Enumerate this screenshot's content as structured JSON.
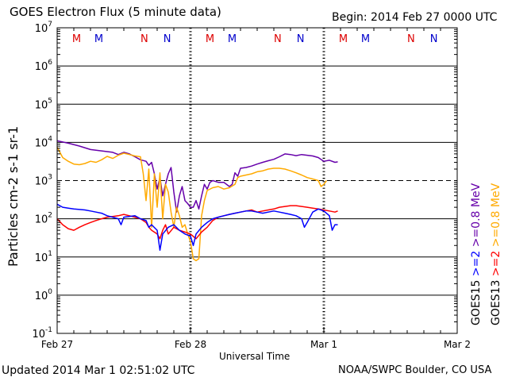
{
  "header": {
    "title": "GOES Electron Flux (5 minute data)",
    "begin": "Begin: 2014 Feb 27 0000 UTC"
  },
  "footer": {
    "updated": "Updated 2014 Mar  1 02:51:02 UTC",
    "credit": "NOAA/SWPC Boulder, CO USA"
  },
  "colors": {
    "goes13_high": "#ff0000",
    "goes15_high": "#0000ff",
    "goes13_low": "#ffaa00",
    "goes15_low": "#6600aa",
    "marker_m": "#dd0000",
    "marker_n_red": "#dd0000",
    "marker_m_blue": "#0000cc",
    "marker_n_blue": "#0000cc"
  },
  "chart_data": {
    "type": "line",
    "title": "GOES Electron Flux (5 minute data)",
    "xlabel": "Universal Time",
    "ylabel": "Particles cm-2 s-1 sr-1",
    "yscale": "log",
    "ylim": [
      0.1,
      10000000
    ],
    "xlim_hours": [
      0,
      72
    ],
    "x_ticks": [
      {
        "hour": 0,
        "label": "Feb 27"
      },
      {
        "hour": 24,
        "label": "Feb 28"
      },
      {
        "hour": 48,
        "label": "Mar 1"
      },
      {
        "hour": 72,
        "label": "Mar 2"
      }
    ],
    "y_ticks": [
      {
        "exp": -1,
        "base": "10",
        "sup": "-1"
      },
      {
        "exp": 0,
        "base": "10",
        "sup": "0"
      },
      {
        "exp": 1,
        "base": "10",
        "sup": "1"
      },
      {
        "exp": 2,
        "base": "10",
        "sup": "2"
      },
      {
        "exp": 3,
        "base": "10",
        "sup": "3"
      },
      {
        "exp": 4,
        "base": "10",
        "sup": "4"
      },
      {
        "exp": 5,
        "base": "10",
        "sup": "5"
      },
      {
        "exp": 6,
        "base": "10",
        "sup": "6"
      },
      {
        "exp": 7,
        "base": "10",
        "sup": "7"
      }
    ],
    "threshold": {
      "value": 1000,
      "style": "dashed"
    },
    "markers": [
      {
        "hour": 3.5,
        "label": "M",
        "color": "#dd0000"
      },
      {
        "hour": 7.5,
        "label": "M",
        "color": "#0000cc"
      },
      {
        "hour": 15.7,
        "label": "N",
        "color": "#dd0000"
      },
      {
        "hour": 19.8,
        "label": "N",
        "color": "#0000cc"
      },
      {
        "hour": 27.5,
        "label": "M",
        "color": "#dd0000"
      },
      {
        "hour": 31.5,
        "label": "M",
        "color": "#0000cc"
      },
      {
        "hour": 39.7,
        "label": "N",
        "color": "#dd0000"
      },
      {
        "hour": 43.8,
        "label": "N",
        "color": "#0000cc"
      },
      {
        "hour": 51.5,
        "label": "M",
        "color": "#dd0000"
      },
      {
        "hour": 55.5,
        "label": "M",
        "color": "#0000cc"
      },
      {
        "hour": 63.7,
        "label": "N",
        "color": "#dd0000"
      },
      {
        "hour": 67.8,
        "label": "N",
        "color": "#0000cc"
      }
    ],
    "series": [
      {
        "name": "GOES15 >=0.8 MeV",
        "color": "#6600aa",
        "points": [
          [
            0,
            11000
          ],
          [
            2,
            9500
          ],
          [
            4,
            8000
          ],
          [
            6,
            6500
          ],
          [
            8,
            6000
          ],
          [
            10,
            5500
          ],
          [
            11,
            4800
          ],
          [
            12,
            5500
          ],
          [
            13,
            5000
          ],
          [
            14,
            4200
          ],
          [
            15,
            3500
          ],
          [
            16,
            3200
          ],
          [
            16.5,
            2500
          ],
          [
            17,
            3000
          ],
          [
            17.5,
            1500
          ],
          [
            18,
            600
          ],
          [
            18.5,
            1200
          ],
          [
            19,
            400
          ],
          [
            19.5,
            800
          ],
          [
            20,
            1500
          ],
          [
            20.5,
            2200
          ],
          [
            21,
            500
          ],
          [
            21.5,
            150
          ],
          [
            22,
            400
          ],
          [
            22.5,
            700
          ],
          [
            23,
            300
          ],
          [
            23.5,
            250
          ],
          [
            24,
            200
          ],
          [
            24.5,
            200
          ],
          [
            25,
            300
          ],
          [
            25.5,
            180
          ],
          [
            26,
            400
          ],
          [
            26.5,
            800
          ],
          [
            27,
            600
          ],
          [
            27.5,
            900
          ],
          [
            28,
            1000
          ],
          [
            29,
            900
          ],
          [
            30,
            900
          ],
          [
            31,
            700
          ],
          [
            31.5,
            800
          ],
          [
            32,
            1600
          ],
          [
            32.5,
            1300
          ],
          [
            33,
            2100
          ],
          [
            34,
            2200
          ],
          [
            35,
            2400
          ],
          [
            36,
            2700
          ],
          [
            37,
            3000
          ],
          [
            38,
            3300
          ],
          [
            39,
            3600
          ],
          [
            40,
            4200
          ],
          [
            41,
            5000
          ],
          [
            42,
            4800
          ],
          [
            43,
            4500
          ],
          [
            44,
            4800
          ],
          [
            45,
            4600
          ],
          [
            46,
            4400
          ],
          [
            47,
            4000
          ],
          [
            48,
            3200
          ],
          [
            49,
            3400
          ],
          [
            50,
            3000
          ],
          [
            50.5,
            3100
          ]
        ]
      },
      {
        "name": "GOES13 >=0.8 MeV",
        "color": "#ffaa00",
        "points": [
          [
            0,
            7500
          ],
          [
            1,
            4000
          ],
          [
            2,
            3200
          ],
          [
            3,
            2700
          ],
          [
            4,
            2600
          ],
          [
            5,
            2800
          ],
          [
            6,
            3200
          ],
          [
            7,
            3000
          ],
          [
            8,
            3500
          ],
          [
            9,
            4300
          ],
          [
            10,
            3800
          ],
          [
            11,
            4600
          ],
          [
            12,
            5200
          ],
          [
            13,
            4800
          ],
          [
            14,
            4400
          ],
          [
            15,
            4200
          ],
          [
            15.5,
            1500
          ],
          [
            16,
            300
          ],
          [
            16.5,
            2000
          ],
          [
            17,
            60
          ],
          [
            17.5,
            1500
          ],
          [
            18,
            200
          ],
          [
            18.5,
            1600
          ],
          [
            19,
            100
          ],
          [
            19.5,
            800
          ],
          [
            20,
            500
          ],
          [
            20.5,
            150
          ],
          [
            21,
            60
          ],
          [
            21.5,
            200
          ],
          [
            22,
            120
          ],
          [
            22.5,
            60
          ],
          [
            23,
            70
          ],
          [
            23.5,
            40
          ],
          [
            24,
            25
          ],
          [
            24.5,
            9
          ],
          [
            25,
            8
          ],
          [
            25.5,
            9
          ],
          [
            26,
            120
          ],
          [
            26.5,
            300
          ],
          [
            27,
            550
          ],
          [
            28,
            650
          ],
          [
            29,
            700
          ],
          [
            30,
            600
          ],
          [
            31,
            650
          ],
          [
            32,
            800
          ],
          [
            32.5,
            1200
          ],
          [
            33,
            1300
          ],
          [
            34,
            1400
          ],
          [
            35,
            1500
          ],
          [
            36,
            1700
          ],
          [
            37,
            1800
          ],
          [
            38,
            2000
          ],
          [
            39,
            2100
          ],
          [
            40,
            2100
          ],
          [
            41,
            2000
          ],
          [
            42,
            1800
          ],
          [
            43,
            1600
          ],
          [
            44,
            1400
          ],
          [
            45,
            1200
          ],
          [
            46,
            1100
          ],
          [
            47,
            1000
          ],
          [
            47.5,
            700
          ],
          [
            48,
            800
          ],
          [
            48.5,
            1000
          ]
        ]
      },
      {
        "name": "GOES13 >=2 MeV",
        "color": "#ff0000",
        "points": [
          [
            0,
            100
          ],
          [
            1,
            70
          ],
          [
            2,
            55
          ],
          [
            3,
            50
          ],
          [
            4,
            60
          ],
          [
            5,
            70
          ],
          [
            6,
            80
          ],
          [
            7,
            90
          ],
          [
            8,
            100
          ],
          [
            9,
            110
          ],
          [
            10,
            115
          ],
          [
            11,
            120
          ],
          [
            12,
            130
          ],
          [
            13,
            120
          ],
          [
            14,
            110
          ],
          [
            15,
            100
          ],
          [
            16,
            80
          ],
          [
            16.5,
            60
          ],
          [
            17,
            50
          ],
          [
            18,
            40
          ],
          [
            18.5,
            30
          ],
          [
            19,
            50
          ],
          [
            19.5,
            70
          ],
          [
            20,
            40
          ],
          [
            21,
            60
          ],
          [
            22,
            50
          ],
          [
            23,
            45
          ],
          [
            24,
            40
          ],
          [
            25,
            30
          ],
          [
            26,
            45
          ],
          [
            27,
            60
          ],
          [
            28,
            90
          ],
          [
            29,
            110
          ],
          [
            30,
            120
          ],
          [
            31,
            130
          ],
          [
            32,
            140
          ],
          [
            33,
            150
          ],
          [
            34,
            160
          ],
          [
            35,
            170
          ],
          [
            36,
            150
          ],
          [
            37,
            160
          ],
          [
            38,
            170
          ],
          [
            39,
            180
          ],
          [
            40,
            200
          ],
          [
            41,
            210
          ],
          [
            42,
            220
          ],
          [
            43,
            220
          ],
          [
            44,
            210
          ],
          [
            45,
            200
          ],
          [
            46,
            190
          ],
          [
            47,
            180
          ],
          [
            48,
            170
          ],
          [
            49,
            160
          ],
          [
            50,
            150
          ],
          [
            50.5,
            160
          ]
        ]
      },
      {
        "name": "GOES15 >=2 MeV",
        "color": "#0000ff",
        "points": [
          [
            0,
            240
          ],
          [
            1,
            200
          ],
          [
            2,
            190
          ],
          [
            3,
            180
          ],
          [
            4,
            175
          ],
          [
            5,
            170
          ],
          [
            6,
            160
          ],
          [
            7,
            150
          ],
          [
            8,
            140
          ],
          [
            9,
            120
          ],
          [
            10,
            110
          ],
          [
            11,
            100
          ],
          [
            11.5,
            70
          ],
          [
            12,
            110
          ],
          [
            13,
            115
          ],
          [
            14,
            120
          ],
          [
            15,
            100
          ],
          [
            16,
            90
          ],
          [
            16.5,
            60
          ],
          [
            17,
            70
          ],
          [
            18,
            50
          ],
          [
            18.5,
            15
          ],
          [
            19,
            40
          ],
          [
            20,
            60
          ],
          [
            21,
            70
          ],
          [
            22,
            50
          ],
          [
            23,
            40
          ],
          [
            24,
            35
          ],
          [
            24.5,
            20
          ],
          [
            25,
            40
          ],
          [
            26,
            60
          ],
          [
            27,
            80
          ],
          [
            28,
            100
          ],
          [
            29,
            110
          ],
          [
            30,
            120
          ],
          [
            31,
            130
          ],
          [
            32,
            140
          ],
          [
            33,
            150
          ],
          [
            34,
            160
          ],
          [
            35,
            160
          ],
          [
            36,
            150
          ],
          [
            37,
            140
          ],
          [
            38,
            150
          ],
          [
            39,
            160
          ],
          [
            40,
            150
          ],
          [
            41,
            140
          ],
          [
            42,
            130
          ],
          [
            43,
            120
          ],
          [
            44,
            100
          ],
          [
            44.5,
            60
          ],
          [
            45,
            80
          ],
          [
            46,
            150
          ],
          [
            47,
            180
          ],
          [
            48,
            160
          ],
          [
            49,
            120
          ],
          [
            49.5,
            50
          ],
          [
            50,
            70
          ],
          [
            50.5,
            70
          ]
        ]
      }
    ],
    "legend_left": [
      {
        "text": "GOES15",
        "color": "#000000"
      },
      {
        "text": ">=2",
        "color": "#0000ff"
      },
      {
        "text": ">=0.8 MeV",
        "color": "#6600aa"
      }
    ],
    "legend_right": [
      {
        "text": "GOES13",
        "color": "#000000"
      },
      {
        "text": ">=2",
        "color": "#ff0000"
      },
      {
        "text": ">=0.8 MeV",
        "color": "#ffaa00"
      }
    ]
  }
}
